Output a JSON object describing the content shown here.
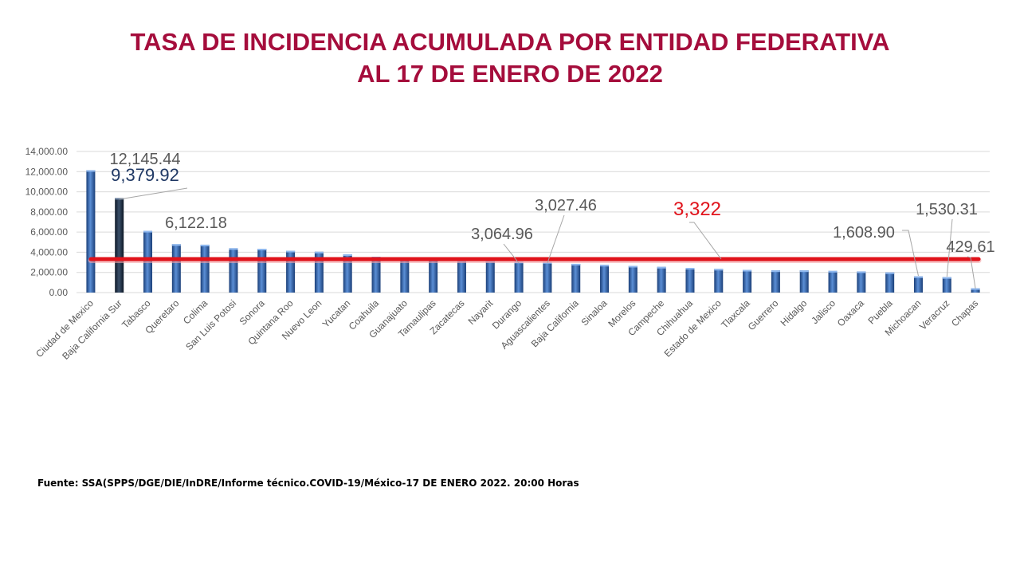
{
  "title_line1": "TASA DE INCIDENCIA ACUMULADA POR ENTIDAD FEDERATIVA",
  "title_line2": "AL 17 DE ENERO DE 2022",
  "source": "Fuente: SSA(SPPS/DGE/DIE/InDRE/Informe técnico.COVID-19/México-17 DE ENERO 2022. 20:00 Horas",
  "colors": {
    "title": "#a50d3c",
    "bar": "#2f62a8",
    "bar_highlight": "#1f3048",
    "reference_line": "#e0131b",
    "reference_label": "#e0131b"
  },
  "chart_data": {
    "type": "bar",
    "categories": [
      "Ciudad de Mexico",
      "Baja California Sur",
      "Tabasco",
      "Queretaro",
      "Colima",
      "San Luis Potosi",
      "Sonora",
      "Quintana Roo",
      "Nuevo Leon",
      "Yucatan",
      "Coahuila",
      "Guanajuato",
      "Tamaulipas",
      "Zacatecas",
      "Nayarit",
      "Durango",
      "Aguascalientes",
      "Baja California",
      "Sinaloa",
      "Morelos",
      "Campeche",
      "Chihuahua",
      "Estado de Mexico",
      "Tlaxcala",
      "Guerrero",
      "Hidalgo",
      "Jalisco",
      "Oaxaca",
      "Puebla",
      "Michoacan",
      "Veracruz",
      "Chapas"
    ],
    "values": [
      12145.44,
      9379.92,
      6122.18,
      4800,
      4750,
      4400,
      4350,
      4150,
      4050,
      3800,
      3550,
      3500,
      3300,
      3200,
      3150,
      3064.96,
      3027.46,
      2850,
      2750,
      2650,
      2550,
      2450,
      2350,
      2250,
      2200,
      2200,
      2150,
      2100,
      2000,
      1608.9,
      1530.31,
      429.61
    ],
    "highlight_index": 1,
    "ylim": [
      0,
      14000
    ],
    "yticks": [
      "0.00",
      "2,000.00",
      "4,000.00",
      "6,000.00",
      "8,000.00",
      "10,000.00",
      "12,000.00",
      "14,000.00"
    ],
    "grid": true,
    "reference_line": {
      "value": 3322,
      "label": "3,322"
    },
    "data_labels": [
      {
        "index": 0,
        "text": "12,145.44"
      },
      {
        "index": 1,
        "text": "9,379.92"
      },
      {
        "index": 2,
        "text": "6,122.18"
      },
      {
        "index": 15,
        "text": "3,064.96"
      },
      {
        "index": 16,
        "text": "3,027.46"
      },
      {
        "index": 29,
        "text": "1,608.90"
      },
      {
        "index": 30,
        "text": "1,530.31"
      },
      {
        "index": 31,
        "text": "429.61"
      }
    ]
  }
}
